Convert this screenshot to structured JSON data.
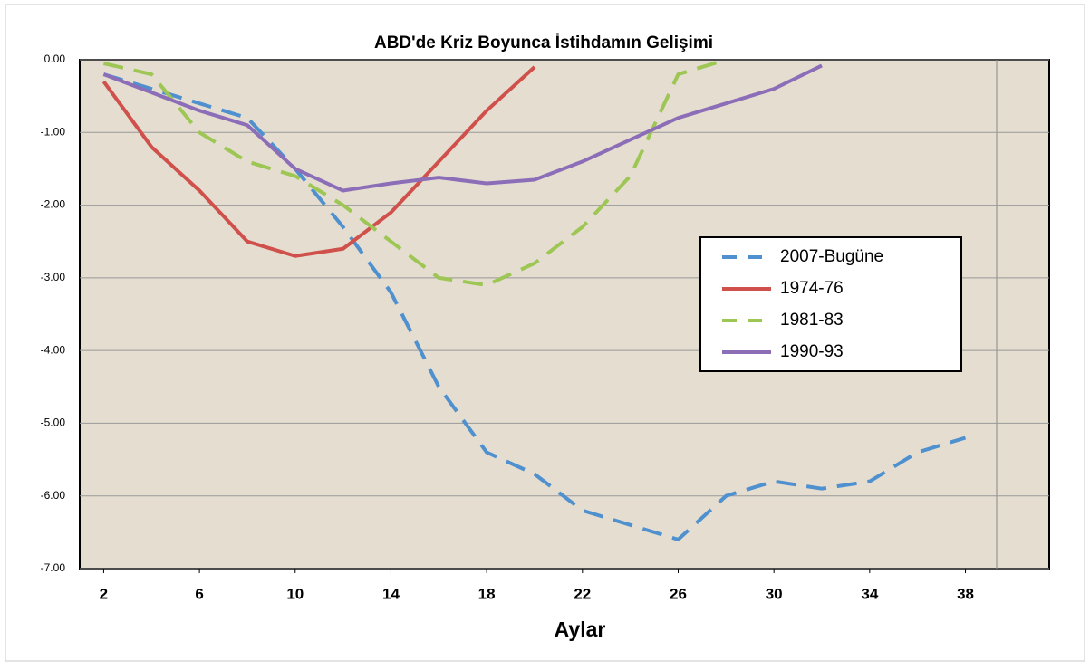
{
  "chart_data": {
    "type": "line",
    "title": "ABD'de Kriz Boyunca İstihdamın Gelişimi",
    "x_label": "Aylar",
    "x": [
      2,
      4,
      6,
      8,
      10,
      12,
      14,
      16,
      18,
      20,
      22,
      24,
      26,
      28,
      30,
      32,
      34,
      36,
      38
    ],
    "xlim": [
      1,
      41.5
    ],
    "xticks": [
      2,
      6,
      10,
      14,
      18,
      22,
      26,
      30,
      34,
      38
    ],
    "ylim": [
      -7,
      0
    ],
    "yticks": [
      {
        "value": 0,
        "label": "0.00"
      },
      {
        "value": -1,
        "label": "-1.00"
      },
      {
        "value": -2,
        "label": "-2.00"
      },
      {
        "value": -3,
        "label": "-3.00"
      },
      {
        "value": -4,
        "label": "-4.00"
      },
      {
        "value": -5,
        "label": "-5.00"
      },
      {
        "value": -6,
        "label": "-6.00"
      },
      {
        "value": -7,
        "label": "-7.00"
      }
    ],
    "grid": true,
    "legend": "right",
    "series": [
      {
        "name": "2007-Bugüne",
        "color": "#4f90cf",
        "dashed": true,
        "values": [
          -0.2,
          -0.4,
          -0.6,
          -0.8,
          -1.5,
          -2.3,
          -3.2,
          -4.5,
          -5.4,
          -5.7,
          -6.2,
          -6.4,
          -6.6,
          -6.0,
          -5.8,
          -5.9,
          -5.8,
          -5.4,
          -5.2
        ]
      },
      {
        "name": "1974-76",
        "color": "#d0504c",
        "dashed": false,
        "values": [
          -0.3,
          -1.2,
          -1.8,
          -2.5,
          -2.7,
          -2.6,
          -2.1,
          -1.4,
          -0.7,
          -0.1,
          null,
          null,
          null,
          null,
          null,
          null,
          null,
          null,
          null
        ]
      },
      {
        "name": "1981-83",
        "color": "#9dc655",
        "dashed": true,
        "values": [
          -0.05,
          -0.2,
          -1.0,
          -1.4,
          -1.6,
          -2.0,
          -2.5,
          -3.0,
          -3.1,
          -2.8,
          -2.3,
          -1.6,
          -0.2,
          0,
          null,
          null,
          null,
          null,
          null
        ]
      },
      {
        "name": "1990-93",
        "color": "#8c6db8",
        "dashed": false,
        "values": [
          -0.2,
          -0.45,
          -0.7,
          -0.9,
          -1.5,
          -1.8,
          -1.7,
          -1.62,
          -1.7,
          -1.65,
          -1.4,
          -1.1,
          -0.8,
          -0.6,
          -0.4,
          -0.08,
          null,
          null,
          null
        ]
      }
    ]
  }
}
